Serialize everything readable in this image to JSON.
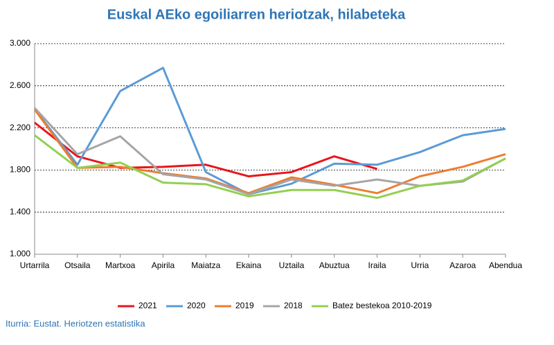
{
  "chart_data": {
    "type": "line",
    "title": "Euskal AEko egoiliarren heriotzak, hilabeteka",
    "source": "Iturria: Eustat. Heriotzen estatistika",
    "categories": [
      "Urtarrila",
      "Otsaila",
      "Martxoa",
      "Apirila",
      "Maiatza",
      "Ekaina",
      "Uztaila",
      "Abuztua",
      "Iraila",
      "Urria",
      "Azaroa",
      "Abendua"
    ],
    "ylim": [
      1000,
      3000
    ],
    "yticks": [
      {
        "value": 1000,
        "label": "1.000"
      },
      {
        "value": 1400,
        "label": "1.400"
      },
      {
        "value": 1800,
        "label": "1.800"
      },
      {
        "value": 2200,
        "label": "2.200"
      },
      {
        "value": 2600,
        "label": "2.600"
      },
      {
        "value": 3000,
        "label": "3.000"
      }
    ],
    "grid": true,
    "legend": "bottom",
    "series": [
      {
        "name": "2021",
        "color": "#e8141c",
        "values": [
          2250,
          1930,
          1820,
          1830,
          1850,
          1740,
          1780,
          1930,
          1810,
          null,
          null,
          null
        ]
      },
      {
        "name": "2020",
        "color": "#5b9bd5",
        "values": [
          2380,
          1850,
          2550,
          2770,
          1780,
          1570,
          1670,
          1860,
          1850,
          1970,
          2130,
          2190
        ]
      },
      {
        "name": "2019",
        "color": "#ed7d31",
        "values": [
          2375,
          1820,
          1830,
          1770,
          1720,
          1580,
          1730,
          1660,
          1580,
          1740,
          1830,
          1950
        ]
      },
      {
        "name": "2018",
        "color": "#a5a5a5",
        "values": [
          2390,
          1950,
          2120,
          1760,
          1710,
          1570,
          1710,
          1650,
          1710,
          1650,
          1690,
          1910
        ]
      },
      {
        "name": "Batez bestekoa 2010-2019",
        "color": "#92d050",
        "values": [
          2130,
          1820,
          1870,
          1680,
          1665,
          1550,
          1610,
          1610,
          1535,
          1650,
          1700,
          1910
        ]
      }
    ]
  }
}
